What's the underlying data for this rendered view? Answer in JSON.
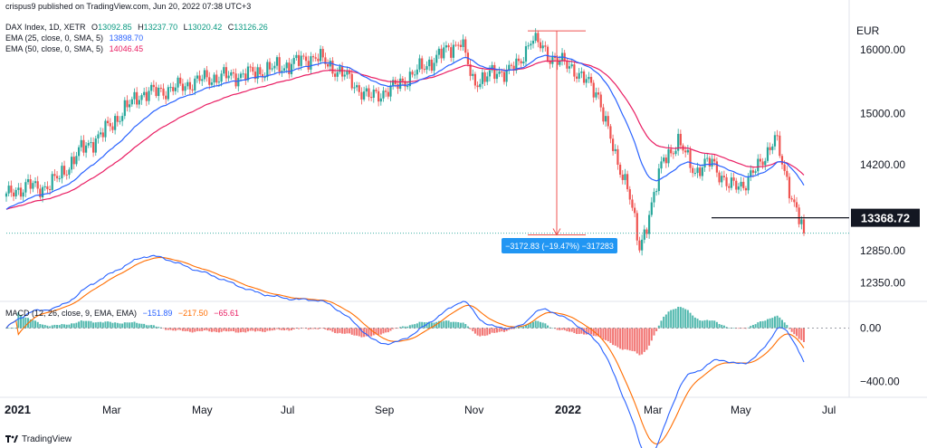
{
  "header": {
    "publisher": "crispus9 published on TradingView.com, Jun 20, 2022 07:38 UTC+3",
    "symbol": "DAX Index, 1D, XETR",
    "ohlc": {
      "O": "13092.85",
      "H": "13237.70",
      "L": "13020.42",
      "C": "13126.26"
    },
    "ema25": {
      "label": "EMA (25, close, 0, SMA, 5)",
      "value": "13898.70"
    },
    "ema50": {
      "label": "EMA (50, close, 0, SMA, 5)",
      "value": "14046.45"
    },
    "macd": {
      "label": "MACD (12, 26, close, 9, EMA, EMA)",
      "v1": "−151.89",
      "v2": "−217.50",
      "v3": "−65.61"
    }
  },
  "brand": "TradingView",
  "colors": {
    "up": "#26a69a",
    "down": "#ef5350",
    "ema25": "#2962ff",
    "ema50": "#e91e63",
    "macd": "#2962ff",
    "signal": "#ff6d00",
    "measure": "#ef5350",
    "text": "#131722"
  },
  "chart_data": {
    "type": "candlestick",
    "currency": "EUR",
    "price_axis": {
      "ticks": [
        16000,
        15000,
        14200,
        12850,
        12350
      ],
      "tick_labels": [
        "16000.00",
        "15000.00",
        "14200.00",
        "12850.00",
        "12350.00"
      ],
      "range": [
        12100,
        16500
      ]
    },
    "macd_axis": {
      "ticks": [
        0,
        -400
      ],
      "tick_labels": [
        "0.00",
        "−400.00"
      ],
      "range": [
        -500,
        180
      ]
    },
    "time_axis": [
      "2021",
      "Mar",
      "May",
      "Jul",
      "Sep",
      "Nov",
      "2022",
      "Mar",
      "May",
      "Jul"
    ],
    "anchors": [
      {
        "i": 0,
        "p": 13700
      },
      {
        "i": 9,
        "p": 13900
      },
      {
        "i": 13,
        "p": 13800
      },
      {
        "i": 22,
        "p": 14000
      },
      {
        "i": 30,
        "p": 14400
      },
      {
        "i": 40,
        "p": 14700
      },
      {
        "i": 55,
        "p": 15300
      },
      {
        "i": 70,
        "p": 15400
      },
      {
        "i": 82,
        "p": 15550
      },
      {
        "i": 100,
        "p": 15620
      },
      {
        "i": 115,
        "p": 15750
      },
      {
        "i": 128,
        "p": 15900
      },
      {
        "i": 140,
        "p": 15600
      },
      {
        "i": 150,
        "p": 15250
      },
      {
        "i": 160,
        "p": 15400
      },
      {
        "i": 175,
        "p": 15800
      },
      {
        "i": 188,
        "p": 16150
      },
      {
        "i": 193,
        "p": 15500
      },
      {
        "i": 200,
        "p": 15600
      },
      {
        "i": 212,
        "p": 15750
      },
      {
        "i": 217,
        "p": 16200
      },
      {
        "i": 225,
        "p": 15900
      },
      {
        "i": 235,
        "p": 15700
      },
      {
        "i": 245,
        "p": 15300
      },
      {
        "i": 252,
        "p": 14300
      },
      {
        "i": 257,
        "p": 13900
      },
      {
        "i": 262,
        "p": 12850
      },
      {
        "i": 265,
        "p": 13300
      },
      {
        "i": 272,
        "p": 14300
      },
      {
        "i": 278,
        "p": 14550
      },
      {
        "i": 285,
        "p": 14100
      },
      {
        "i": 292,
        "p": 14250
      },
      {
        "i": 299,
        "p": 13850
      },
      {
        "i": 305,
        "p": 13900
      },
      {
        "i": 312,
        "p": 14200
      },
      {
        "i": 318,
        "p": 14650
      },
      {
        "i": 322,
        "p": 14050
      },
      {
        "i": 327,
        "p": 13500
      },
      {
        "i": 330,
        "p": 13126
      }
    ],
    "ema25_last": 13898.7,
    "ema50_last": 14046.45,
    "last_close": 13126.26,
    "measurement": {
      "label": "−3172.83 (−19.47%) −317283",
      "from_price": 16300,
      "to_price": 13100
    },
    "support_line": {
      "price": 13368.72,
      "label": "13368.72"
    }
  }
}
